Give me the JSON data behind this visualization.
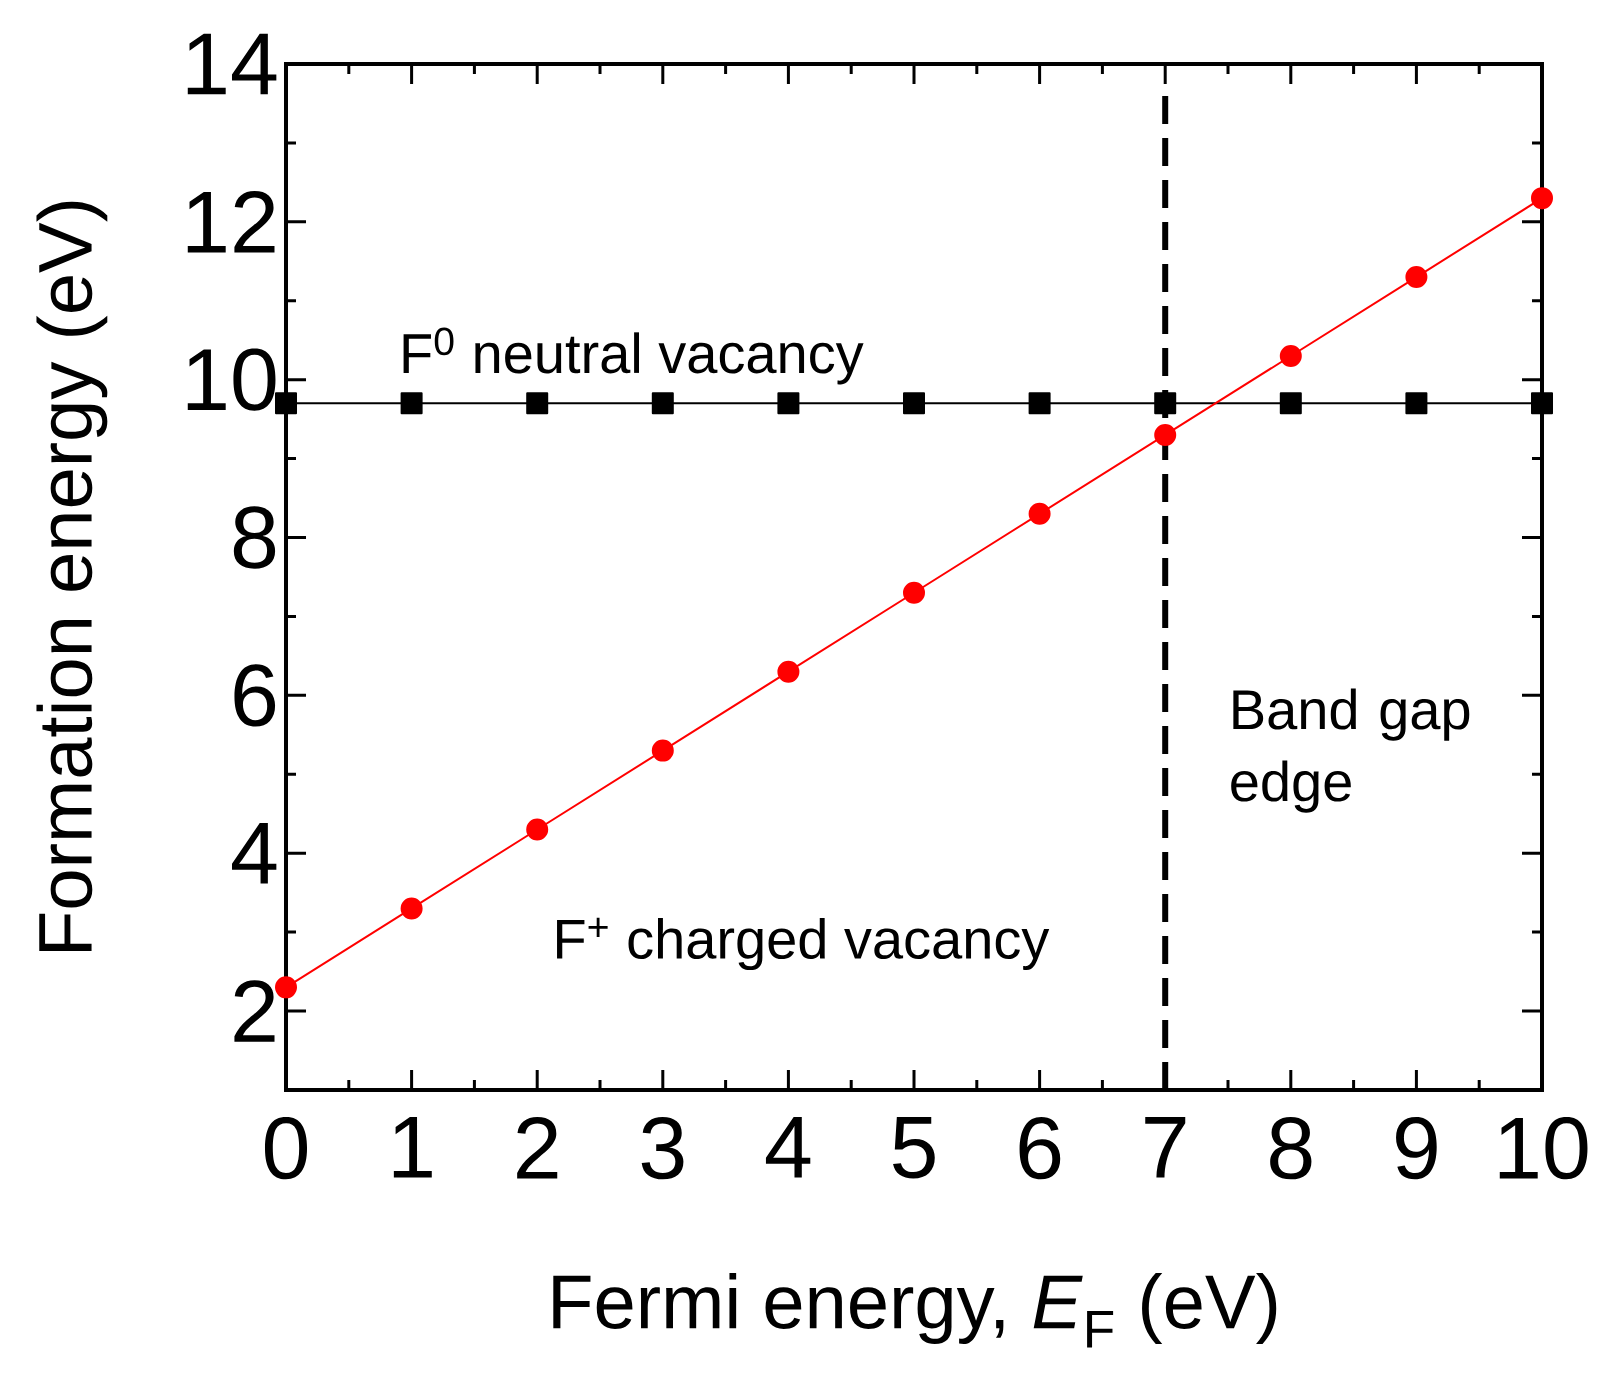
{
  "chart_data": {
    "type": "line",
    "xlabel": "Fermi energy, *E*$_{F}$ (eV)",
    "ylabel": "Formation energy (eV)",
    "x": [
      0,
      1,
      2,
      3,
      4,
      5,
      6,
      7,
      8,
      9,
      10
    ],
    "series": [
      {
        "color": "#000000",
        "marker": "square",
        "values": [
          9.7,
          9.7,
          9.7,
          9.7,
          9.7,
          9.7,
          9.7,
          9.7,
          9.7,
          9.7,
          9.7
        ]
      },
      {
        "color": "#ff0000",
        "marker": "circle",
        "values": [
          2.3,
          3.3,
          4.3,
          5.3,
          6.3,
          7.3,
          8.3,
          9.3,
          10.3,
          11.3,
          12.3
        ]
      }
    ],
    "xlim": [
      0,
      10
    ],
    "ylim": [
      1,
      14
    ],
    "xticks": [
      0,
      1,
      2,
      3,
      4,
      5,
      6,
      7,
      8,
      9,
      10
    ],
    "yticks": [
      2,
      4,
      6,
      8,
      10,
      12,
      14
    ],
    "ref_lines": [
      {
        "axis": "x",
        "value": 7,
        "label": "Band gap edge",
        "color": "#000000",
        "line_style": "dashed"
      }
    ],
    "annotations": [
      "F$^{0}$ neutral vacancy",
      "F$^{+}$ charged vacancy"
    ],
    "grid": false
  }
}
